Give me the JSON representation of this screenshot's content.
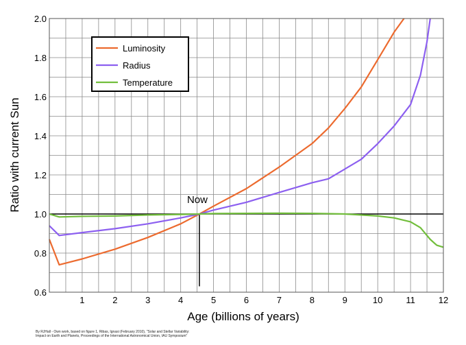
{
  "chart_data": {
    "type": "line",
    "xlabel": "Age (billions of years)",
    "ylabel": "Ratio with current Sun",
    "xlim": [
      0,
      12
    ],
    "ylim": [
      0.6,
      2.0
    ],
    "x_ticks": [
      1,
      2,
      3,
      4,
      5,
      6,
      7,
      8,
      9,
      10,
      11,
      12
    ],
    "y_ticks": [
      "0.6",
      "0.8",
      "1.0",
      "1.2",
      "1.4",
      "1.6",
      "1.8",
      "2.0"
    ],
    "grid": true,
    "legend_position": "top-left",
    "reference_line_y": 1.0,
    "annotations": [
      {
        "text": "Now",
        "x": 4.57,
        "y": 1.0
      }
    ],
    "series": [
      {
        "name": "Luminosity",
        "color": "#ec6a2e",
        "x": [
          0,
          0.3,
          1,
          2,
          3,
          4,
          4.57,
          5,
          6,
          7,
          8,
          8.5,
          9,
          9.5,
          10,
          10.5,
          10.8
        ],
        "y": [
          0.87,
          0.74,
          0.77,
          0.82,
          0.88,
          0.95,
          1.0,
          1.04,
          1.13,
          1.24,
          1.36,
          1.44,
          1.54,
          1.65,
          1.79,
          1.93,
          2.0
        ]
      },
      {
        "name": "Radius",
        "color": "#8c5ff0",
        "x": [
          0,
          0.3,
          1,
          2,
          3,
          4,
          4.57,
          5,
          6,
          7,
          8,
          8.5,
          9,
          9.5,
          10,
          10.5,
          11,
          11.3,
          11.5,
          11.6
        ],
        "y": [
          0.94,
          0.89,
          0.905,
          0.925,
          0.95,
          0.98,
          1.0,
          1.02,
          1.06,
          1.11,
          1.16,
          1.18,
          1.23,
          1.28,
          1.36,
          1.45,
          1.56,
          1.71,
          1.88,
          2.0
        ]
      },
      {
        "name": "Temperature",
        "color": "#72be3c",
        "x": [
          0,
          0.3,
          1,
          2,
          3,
          4,
          4.57,
          5,
          6,
          7,
          8,
          9,
          10,
          10.5,
          11,
          11.3,
          11.6,
          11.8,
          12
        ],
        "y": [
          1.0,
          0.985,
          0.988,
          0.99,
          0.995,
          0.998,
          1.0,
          1.002,
          1.003,
          1.004,
          1.003,
          1.0,
          0.99,
          0.98,
          0.96,
          0.93,
          0.87,
          0.84,
          0.83
        ]
      }
    ]
  },
  "credit_lines": [
    "By RJHall - Own work, based on figure 1, Ribas, Ignasi (February 2010), \"Solar and Stellar Variability:",
    "Impact on Earth and Planets, Proceedings of the International Astronomical Union, IAU Symposium\""
  ]
}
